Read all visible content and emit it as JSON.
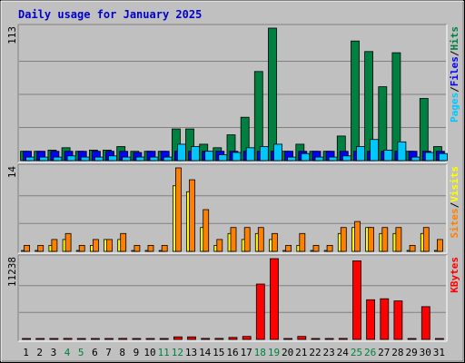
{
  "chart_data": {
    "type": "bar",
    "title": "Daily usage for January 2025",
    "categories": [
      "1",
      "2",
      "3",
      "4",
      "5",
      "6",
      "7",
      "8",
      "9",
      "10",
      "11",
      "12",
      "13",
      "14",
      "15",
      "16",
      "17",
      "18",
      "19",
      "20",
      "21",
      "22",
      "23",
      "24",
      "25",
      "26",
      "27",
      "28",
      "29",
      "30",
      "31"
    ],
    "weekend_days": [
      "4",
      "5",
      "11",
      "12",
      "18",
      "19",
      "25",
      "26"
    ],
    "panels": [
      {
        "name": "hits-files-pages",
        "y_tick_label": "113",
        "y_max": 113,
        "axis_legend": [
          {
            "label": "Pages",
            "color": "#00c8ff"
          },
          {
            "label": "/",
            "color": "#000000"
          },
          {
            "label": "Files",
            "color": "#0000ff"
          },
          {
            "label": "/",
            "color": "#000000"
          },
          {
            "label": "Hits",
            "color": "#008040"
          }
        ],
        "series": [
          {
            "name": "Hits",
            "color": "#008040",
            "values": [
              8,
              8,
              9,
              11,
              8,
              9,
              9,
              12,
              8,
              8,
              8,
              27,
              27,
              14,
              11,
              22,
              37,
              76,
              113,
              8,
              14,
              8,
              8,
              21,
              102,
              93,
              63,
              92,
              8,
              53,
              12
            ]
          },
          {
            "name": "Files",
            "color": "#0000ff",
            "values": [
              8,
              8,
              8,
              8,
              8,
              8,
              8,
              8,
              7,
              8,
              8,
              8,
              8,
              8,
              8,
              8,
              8,
              8,
              8,
              8,
              8,
              8,
              8,
              8,
              8,
              8,
              8,
              8,
              8,
              8,
              8
            ]
          },
          {
            "name": "Pages",
            "color": "#00c8ff",
            "values": [
              3,
              3,
              3,
              4,
              3,
              3,
              4,
              3,
              3,
              3,
              3,
              14,
              12,
              8,
              5,
              7,
              11,
              12,
              14,
              3,
              6,
              3,
              3,
              4,
              12,
              18,
              9,
              16,
              3,
              7,
              6
            ]
          }
        ]
      },
      {
        "name": "visits-sites",
        "y_tick_label": "14",
        "y_max": 14,
        "axis_legend": [
          {
            "label": "Sites",
            "color": "#ff8000"
          },
          {
            "label": "/",
            "color": "#000000"
          },
          {
            "label": "Visits",
            "color": "#ffff00"
          }
        ],
        "series": [
          {
            "name": "Visits",
            "color": "#ffff00",
            "values": [
              0,
              0,
              1,
              2,
              0,
              1,
              2,
              2,
              0,
              0,
              0,
              11,
              10,
              4,
              1,
              3,
              2,
              3,
              2,
              0,
              1,
              0,
              0,
              3,
              4,
              4,
              3,
              3,
              0,
              3,
              0
            ]
          },
          {
            "name": "Sites",
            "color": "#ff8000",
            "values": [
              1,
              1,
              2,
              3,
              1,
              2,
              2,
              3,
              1,
              1,
              1,
              14,
              12,
              7,
              2,
              4,
              4,
              4,
              3,
              1,
              3,
              1,
              1,
              4,
              5,
              4,
              4,
              4,
              1,
              4,
              2
            ]
          }
        ]
      },
      {
        "name": "kbytes",
        "y_tick_label": "11238",
        "y_max": 11238,
        "axis_legend": [
          {
            "label": "KBytes",
            "color": "#ff0000"
          }
        ],
        "series": [
          {
            "name": "KBytes",
            "color": "#ff0000",
            "values": [
              70,
              70,
              70,
              140,
              70,
              70,
              70,
              140,
              70,
              70,
              70,
              350,
              350,
              140,
              140,
              280,
              420,
              7700,
              11238,
              70,
              420,
              70,
              70,
              140,
              10940,
              5520,
              5660,
              5360,
              70,
              4560,
              70
            ]
          }
        ]
      }
    ]
  }
}
